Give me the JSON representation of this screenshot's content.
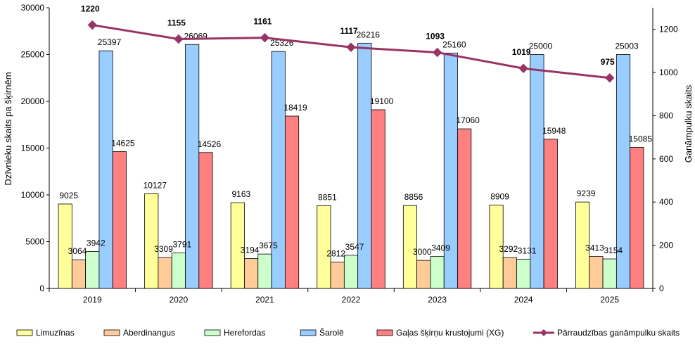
{
  "chart_data": {
    "type": "bar+line",
    "categories": [
      "2019",
      "2020",
      "2021",
      "2022",
      "2023",
      "2024",
      "2025"
    ],
    "series": [
      {
        "name": "Limuzīnas",
        "color": "#ffff99",
        "axis": "left",
        "values": [
          9025,
          10127,
          9163,
          8851,
          8856,
          8909,
          9239
        ]
      },
      {
        "name": "Aberdinangus",
        "color": "#ffcc99",
        "axis": "left",
        "values": [
          3064,
          3309,
          3194,
          2812,
          3000,
          3292,
          3413
        ]
      },
      {
        "name": "Herefordas",
        "color": "#ccffcc",
        "axis": "left",
        "values": [
          3942,
          3791,
          3675,
          3547,
          3409,
          3131,
          3154
        ]
      },
      {
        "name": "Šarolē",
        "color": "#99ccff",
        "axis": "left",
        "values": [
          25397,
          26069,
          25326,
          26216,
          25160,
          25000,
          25003
        ]
      },
      {
        "name": "Gaļas šķirņu krustojumi (XG)",
        "color": "#ff8080",
        "axis": "left",
        "values": [
          14625,
          14526,
          18419,
          19100,
          17060,
          15948,
          15085
        ]
      }
    ],
    "line_series": {
      "name": "Pārraudzības ganāmpulku skaits",
      "color": "#993366",
      "axis": "right",
      "values": [
        1220,
        1155,
        1161,
        1117,
        1093,
        1019,
        975
      ]
    },
    "ylabel": "Dzīvnieku skaits pa šķirnēm",
    "y2label": "Ganāmpulku skaits",
    "ylim": [
      0,
      30000
    ],
    "yticks": [
      0,
      5000,
      10000,
      15000,
      20000,
      25000,
      30000
    ],
    "y2lim": [
      0,
      1300
    ],
    "y2ticks": [
      0,
      200,
      400,
      600,
      800,
      1000,
      1200
    ],
    "legend_position": "bottom",
    "grid": false
  }
}
